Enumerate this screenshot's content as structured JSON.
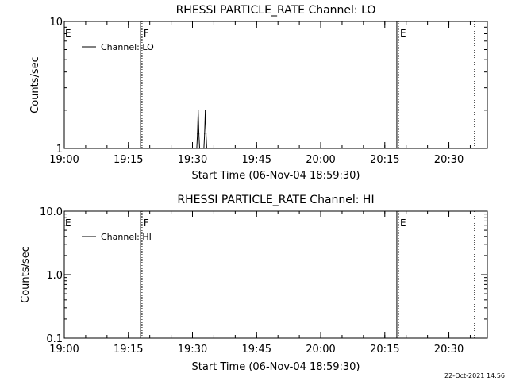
{
  "footer": {
    "timestamp": "22-Oct-2021 14:56"
  },
  "chart_data": [
    {
      "type": "line",
      "title": "RHESSI PARTICLE_RATE Channel: LO",
      "xlabel": "Start Time (06-Nov-04 18:59:30)",
      "ylabel": "Counts/sec",
      "yscale": "log",
      "ylim": [
        1,
        10
      ],
      "xlim": [
        "19:00",
        "20:39"
      ],
      "x_ticks": [
        "19:00",
        "19:15",
        "19:30",
        "19:45",
        "20:00",
        "20:15",
        "20:30"
      ],
      "y_ticks": [
        "1",
        "10"
      ],
      "legend": "top-left",
      "series": [
        {
          "name": "Channel: LO",
          "points": [
            [
              "19:31:00",
              1
            ],
            [
              "19:31:10",
              1.3
            ],
            [
              "19:31:20",
              2
            ],
            [
              "19:31:30",
              1.3
            ],
            [
              "19:31:40",
              1
            ],
            [
              "19:32:40",
              1
            ],
            [
              "19:32:50",
              1.3
            ],
            [
              "19:33:00",
              2
            ],
            [
              "19:33:10",
              1.3
            ],
            [
              "19:33:20",
              1
            ]
          ]
        }
      ],
      "markers": [
        {
          "time": "19:18:00",
          "label": "F",
          "style": "solid"
        },
        {
          "time": "20:18:00",
          "label": "E",
          "style": "solid"
        },
        {
          "time": "20:36:00",
          "label": "",
          "style": "dotted"
        }
      ],
      "edge_label": "E"
    },
    {
      "type": "line",
      "title": "RHESSI PARTICLE_RATE Channel: HI",
      "xlabel": "Start Time (06-Nov-04 18:59:30)",
      "ylabel": "Counts/sec",
      "yscale": "log",
      "ylim": [
        0.1,
        10
      ],
      "xlim": [
        "19:00",
        "20:39"
      ],
      "x_ticks": [
        "19:00",
        "19:15",
        "19:30",
        "19:45",
        "20:00",
        "20:15",
        "20:30"
      ],
      "y_ticks": [
        "0.1",
        "1.0",
        "10.0"
      ],
      "legend": "top-left",
      "series": [
        {
          "name": "Channel: HI",
          "points": []
        }
      ],
      "markers": [
        {
          "time": "19:18:00",
          "label": "F",
          "style": "solid"
        },
        {
          "time": "20:18:00",
          "label": "E",
          "style": "solid"
        },
        {
          "time": "20:36:00",
          "label": "",
          "style": "dotted"
        }
      ],
      "edge_label": "E"
    }
  ]
}
